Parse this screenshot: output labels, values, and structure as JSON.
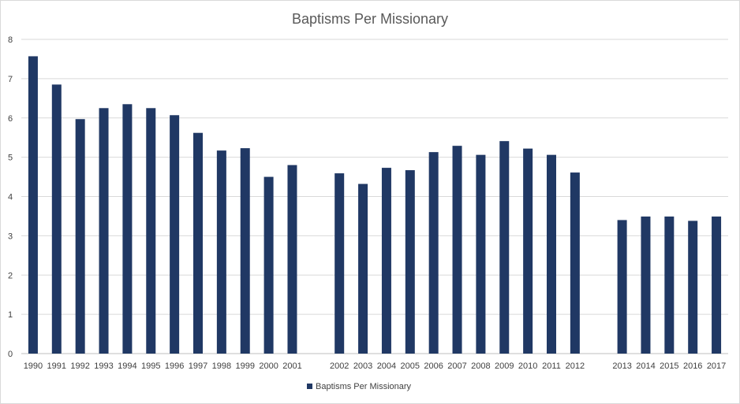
{
  "chart_data": {
    "type": "bar",
    "title": "Baptisms Per Missionary",
    "xlabel": "",
    "ylabel": "",
    "ylim": [
      0,
      8
    ],
    "yticks": [
      "0",
      "1",
      "2",
      "3",
      "4",
      "5",
      "6",
      "7",
      "8"
    ],
    "grid": true,
    "legend_position": "bottom",
    "bar_color": "#203864",
    "categories": [
      "1990",
      "1991",
      "1992",
      "1993",
      "1994",
      "1995",
      "1996",
      "1997",
      "1998",
      "1999",
      "2000",
      "2001",
      "",
      "2002",
      "2003",
      "2004",
      "2005",
      "2006",
      "2007",
      "2008",
      "2009",
      "2010",
      "2011",
      "2012",
      "",
      "2013",
      "2014",
      "2015",
      "2016",
      "2017"
    ],
    "series": [
      {
        "name": "Baptisms Per Missionary",
        "values": [
          7.57,
          6.85,
          5.97,
          6.25,
          6.35,
          6.25,
          6.07,
          5.62,
          5.17,
          5.23,
          4.5,
          4.8,
          null,
          4.59,
          4.32,
          4.73,
          4.67,
          5.13,
          5.29,
          5.06,
          5.41,
          5.22,
          5.06,
          4.61,
          null,
          3.4,
          3.49,
          3.49,
          3.38,
          3.49
        ]
      }
    ]
  }
}
